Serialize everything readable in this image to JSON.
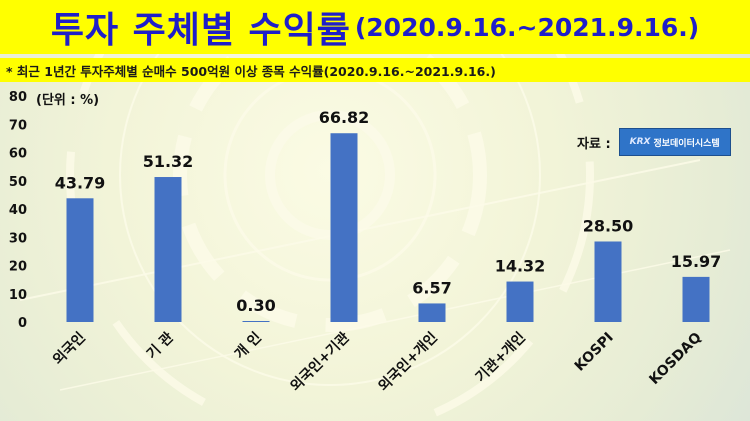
{
  "header": {
    "title_main": "투자 주체별 수익률",
    "title_period": "(2020.9.16.~2021.9.16.)"
  },
  "subtitle": "* 최근 1년간 투자주체별 순매수 500억원 이상 종목 수익률(2020.9.16.~2021.9.16.)",
  "unit_label": "(단위 : %)",
  "source": {
    "label": "자료 :",
    "logo_mark": "KRX",
    "logo_text": "정보데이터시스템"
  },
  "colors": {
    "bar": "#4472c4",
    "title_text": "#1f1fc9",
    "banner": "#ffff00"
  },
  "chart_data": {
    "type": "bar",
    "categories": [
      "외국인",
      "기    관",
      "개    인",
      "외국인+기관",
      "외국인+개인",
      "기관+개인",
      "KOSPI",
      "KOSDAQ"
    ],
    "values": [
      43.79,
      51.32,
      0.3,
      66.82,
      6.57,
      14.32,
      28.5,
      15.97
    ],
    "value_labels": [
      "43.79",
      "51.32",
      "0.30",
      "66.82",
      "6.57",
      "14.32",
      "28.50",
      "15.97"
    ],
    "ylim": [
      0,
      80
    ],
    "yticks": [
      0,
      10,
      20,
      30,
      40,
      50,
      60,
      70,
      80
    ],
    "grid": false,
    "legend": "none"
  }
}
